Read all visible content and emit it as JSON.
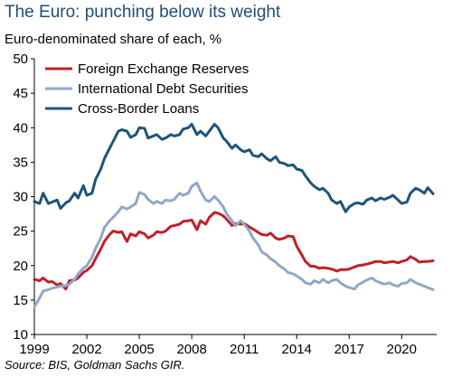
{
  "title": "The Euro: punching below its weight",
  "subtitle": "Euro-denominated share of each, %",
  "source": "Source: BIS, Goldman Sachs GIR.",
  "chart_data": {
    "type": "line",
    "title": "The Euro: punching below its weight",
    "ylabel": "Euro-denominated share of each, %",
    "xlim": [
      1999,
      2022
    ],
    "ylim": [
      10,
      50
    ],
    "yticks": [
      10,
      15,
      20,
      25,
      30,
      35,
      40,
      45,
      50
    ],
    "xticks": [
      1999,
      2002,
      2005,
      2008,
      2011,
      2014,
      2017,
      2020
    ],
    "grid": false,
    "legend": "top-left",
    "series": [
      {
        "name": "Foreign Exchange Reserves",
        "color": "#c0202a",
        "points": [
          [
            1999.0,
            18.0
          ],
          [
            1999.3,
            17.8
          ],
          [
            1999.5,
            18.2
          ],
          [
            1999.8,
            17.6
          ],
          [
            2000.0,
            17.7
          ],
          [
            2000.3,
            17.2
          ],
          [
            2000.5,
            17.4
          ],
          [
            2000.8,
            16.6
          ],
          [
            2001.0,
            17.8
          ],
          [
            2001.3,
            17.9
          ],
          [
            2001.5,
            18.2
          ],
          [
            2001.8,
            19.0
          ],
          [
            2002.0,
            19.3
          ],
          [
            2002.3,
            20.0
          ],
          [
            2002.5,
            21.0
          ],
          [
            2002.8,
            22.4
          ],
          [
            2003.0,
            23.5
          ],
          [
            2003.3,
            24.5
          ],
          [
            2003.5,
            25.0
          ],
          [
            2003.8,
            24.8
          ],
          [
            2004.0,
            24.9
          ],
          [
            2004.3,
            23.5
          ],
          [
            2004.5,
            24.6
          ],
          [
            2004.8,
            24.3
          ],
          [
            2005.0,
            24.9
          ],
          [
            2005.3,
            24.6
          ],
          [
            2005.5,
            24.0
          ],
          [
            2005.8,
            24.4
          ],
          [
            2006.0,
            24.9
          ],
          [
            2006.3,
            24.8
          ],
          [
            2006.5,
            25.0
          ],
          [
            2006.8,
            25.7
          ],
          [
            2007.0,
            25.8
          ],
          [
            2007.3,
            26.0
          ],
          [
            2007.5,
            26.4
          ],
          [
            2007.8,
            26.5
          ],
          [
            2008.0,
            26.6
          ],
          [
            2008.3,
            25.2
          ],
          [
            2008.5,
            26.5
          ],
          [
            2008.8,
            26.0
          ],
          [
            2009.0,
            27.0
          ],
          [
            2009.3,
            27.7
          ],
          [
            2009.5,
            27.6
          ],
          [
            2009.8,
            27.2
          ],
          [
            2010.0,
            26.7
          ],
          [
            2010.3,
            25.8
          ],
          [
            2010.5,
            26.1
          ],
          [
            2010.8,
            26.0
          ],
          [
            2011.0,
            26.1
          ],
          [
            2011.3,
            25.6
          ],
          [
            2011.5,
            25.3
          ],
          [
            2011.8,
            24.8
          ],
          [
            2012.0,
            24.5
          ],
          [
            2012.3,
            24.4
          ],
          [
            2012.5,
            24.7
          ],
          [
            2012.8,
            24.0
          ],
          [
            2013.0,
            23.8
          ],
          [
            2013.3,
            24.0
          ],
          [
            2013.5,
            24.3
          ],
          [
            2013.8,
            24.2
          ],
          [
            2014.0,
            22.8
          ],
          [
            2014.3,
            21.5
          ],
          [
            2014.5,
            20.6
          ],
          [
            2014.8,
            19.9
          ],
          [
            2015.0,
            19.9
          ],
          [
            2015.3,
            19.6
          ],
          [
            2015.5,
            19.7
          ],
          [
            2015.8,
            19.6
          ],
          [
            2016.0,
            19.5
          ],
          [
            2016.3,
            19.2
          ],
          [
            2016.5,
            19.4
          ],
          [
            2016.8,
            19.4
          ],
          [
            2017.0,
            19.5
          ],
          [
            2017.3,
            19.8
          ],
          [
            2017.5,
            20.0
          ],
          [
            2017.8,
            20.1
          ],
          [
            2018.0,
            20.2
          ],
          [
            2018.3,
            20.4
          ],
          [
            2018.5,
            20.6
          ],
          [
            2018.8,
            20.6
          ],
          [
            2019.0,
            20.4
          ],
          [
            2019.3,
            20.5
          ],
          [
            2019.5,
            20.6
          ],
          [
            2019.8,
            20.4
          ],
          [
            2020.0,
            20.6
          ],
          [
            2020.3,
            20.8
          ],
          [
            2020.5,
            21.3
          ],
          [
            2020.8,
            20.9
          ],
          [
            2021.0,
            20.5
          ],
          [
            2021.3,
            20.6
          ],
          [
            2021.5,
            20.6
          ],
          [
            2021.8,
            20.7
          ]
        ]
      },
      {
        "name": "International Debt Securities",
        "color": "#8fa8c8",
        "points": [
          [
            1999.0,
            14.0
          ],
          [
            1999.3,
            15.3
          ],
          [
            1999.5,
            16.3
          ],
          [
            1999.8,
            16.5
          ],
          [
            2000.0,
            16.7
          ],
          [
            2000.3,
            16.9
          ],
          [
            2000.5,
            17.0
          ],
          [
            2000.8,
            17.1
          ],
          [
            2001.0,
            17.3
          ],
          [
            2001.3,
            18.0
          ],
          [
            2001.5,
            18.8
          ],
          [
            2001.8,
            19.6
          ],
          [
            2002.0,
            20.0
          ],
          [
            2002.3,
            21.2
          ],
          [
            2002.5,
            22.5
          ],
          [
            2002.8,
            24.0
          ],
          [
            2003.0,
            25.5
          ],
          [
            2003.3,
            26.5
          ],
          [
            2003.5,
            27.0
          ],
          [
            2003.8,
            27.8
          ],
          [
            2004.0,
            28.5
          ],
          [
            2004.3,
            28.2
          ],
          [
            2004.5,
            28.5
          ],
          [
            2004.8,
            29.0
          ],
          [
            2005.0,
            30.6
          ],
          [
            2005.3,
            30.3
          ],
          [
            2005.5,
            29.6
          ],
          [
            2005.8,
            29.0
          ],
          [
            2006.0,
            29.3
          ],
          [
            2006.3,
            29.0
          ],
          [
            2006.5,
            29.5
          ],
          [
            2006.8,
            29.4
          ],
          [
            2007.0,
            29.6
          ],
          [
            2007.3,
            30.5
          ],
          [
            2007.5,
            30.2
          ],
          [
            2007.8,
            30.5
          ],
          [
            2008.0,
            31.5
          ],
          [
            2008.3,
            32.0
          ],
          [
            2008.5,
            30.8
          ],
          [
            2008.8,
            29.5
          ],
          [
            2009.0,
            29.3
          ],
          [
            2009.3,
            30.0
          ],
          [
            2009.5,
            29.5
          ],
          [
            2009.8,
            28.5
          ],
          [
            2010.0,
            27.5
          ],
          [
            2010.3,
            26.5
          ],
          [
            2010.5,
            25.8
          ],
          [
            2010.8,
            26.5
          ],
          [
            2011.0,
            26.0
          ],
          [
            2011.3,
            25.0
          ],
          [
            2011.5,
            24.0
          ],
          [
            2011.8,
            23.0
          ],
          [
            2012.0,
            22.0
          ],
          [
            2012.3,
            21.5
          ],
          [
            2012.5,
            21.0
          ],
          [
            2012.8,
            20.5
          ],
          [
            2013.0,
            20.0
          ],
          [
            2013.3,
            19.5
          ],
          [
            2013.5,
            19.0
          ],
          [
            2013.8,
            18.8
          ],
          [
            2014.0,
            18.5
          ],
          [
            2014.3,
            18.0
          ],
          [
            2014.5,
            17.5
          ],
          [
            2014.8,
            17.3
          ],
          [
            2015.0,
            17.8
          ],
          [
            2015.3,
            17.5
          ],
          [
            2015.5,
            18.0
          ],
          [
            2015.8,
            17.5
          ],
          [
            2016.0,
            17.8
          ],
          [
            2016.3,
            18.0
          ],
          [
            2016.5,
            17.5
          ],
          [
            2016.8,
            17.0
          ],
          [
            2017.0,
            16.8
          ],
          [
            2017.3,
            16.6
          ],
          [
            2017.5,
            17.2
          ],
          [
            2017.8,
            17.6
          ],
          [
            2018.0,
            17.9
          ],
          [
            2018.3,
            18.2
          ],
          [
            2018.5,
            17.8
          ],
          [
            2018.8,
            17.5
          ],
          [
            2019.0,
            17.3
          ],
          [
            2019.3,
            17.5
          ],
          [
            2019.5,
            17.2
          ],
          [
            2019.8,
            17.0
          ],
          [
            2020.0,
            17.4
          ],
          [
            2020.3,
            17.5
          ],
          [
            2020.5,
            18.0
          ],
          [
            2020.8,
            17.5
          ],
          [
            2021.0,
            17.3
          ],
          [
            2021.3,
            17.0
          ],
          [
            2021.5,
            16.8
          ],
          [
            2021.8,
            16.5
          ]
        ]
      },
      {
        "name": "Cross-Border Loans",
        "color": "#1e5477",
        "points": [
          [
            1999.0,
            29.3
          ],
          [
            1999.3,
            29.0
          ],
          [
            1999.5,
            30.5
          ],
          [
            1999.8,
            29.0
          ],
          [
            2000.0,
            29.2
          ],
          [
            2000.3,
            29.5
          ],
          [
            2000.5,
            28.3
          ],
          [
            2000.8,
            29.1
          ],
          [
            2001.0,
            29.4
          ],
          [
            2001.3,
            30.5
          ],
          [
            2001.5,
            29.8
          ],
          [
            2001.8,
            31.6
          ],
          [
            2002.0,
            30.2
          ],
          [
            2002.3,
            30.5
          ],
          [
            2002.5,
            32.5
          ],
          [
            2002.8,
            34.0
          ],
          [
            2003.0,
            35.5
          ],
          [
            2003.3,
            37.0
          ],
          [
            2003.5,
            38.0
          ],
          [
            2003.8,
            39.5
          ],
          [
            2004.0,
            39.7
          ],
          [
            2004.3,
            39.5
          ],
          [
            2004.5,
            38.6
          ],
          [
            2004.8,
            39.0
          ],
          [
            2005.0,
            40.0
          ],
          [
            2005.3,
            39.9
          ],
          [
            2005.5,
            38.5
          ],
          [
            2005.8,
            38.8
          ],
          [
            2006.0,
            39.0
          ],
          [
            2006.3,
            38.3
          ],
          [
            2006.5,
            38.5
          ],
          [
            2006.8,
            39.0
          ],
          [
            2007.0,
            38.8
          ],
          [
            2007.3,
            39.0
          ],
          [
            2007.5,
            39.8
          ],
          [
            2007.8,
            40.0
          ],
          [
            2008.0,
            40.5
          ],
          [
            2008.3,
            39.0
          ],
          [
            2008.5,
            39.5
          ],
          [
            2008.8,
            38.8
          ],
          [
            2009.0,
            39.5
          ],
          [
            2009.3,
            40.5
          ],
          [
            2009.5,
            40.0
          ],
          [
            2009.8,
            38.5
          ],
          [
            2010.0,
            38.0
          ],
          [
            2010.3,
            37.0
          ],
          [
            2010.5,
            37.5
          ],
          [
            2010.8,
            36.8
          ],
          [
            2011.0,
            36.5
          ],
          [
            2011.3,
            36.8
          ],
          [
            2011.5,
            36.0
          ],
          [
            2011.8,
            35.8
          ],
          [
            2012.0,
            36.2
          ],
          [
            2012.3,
            35.5
          ],
          [
            2012.5,
            35.2
          ],
          [
            2012.8,
            35.8
          ],
          [
            2013.0,
            35.0
          ],
          [
            2013.3,
            34.8
          ],
          [
            2013.5,
            34.5
          ],
          [
            2013.8,
            34.6
          ],
          [
            2014.0,
            34.0
          ],
          [
            2014.3,
            33.8
          ],
          [
            2014.5,
            33.0
          ],
          [
            2014.8,
            32.0
          ],
          [
            2015.0,
            31.5
          ],
          [
            2015.3,
            31.0
          ],
          [
            2015.5,
            31.2
          ],
          [
            2015.8,
            30.5
          ],
          [
            2016.0,
            29.5
          ],
          [
            2016.3,
            29.0
          ],
          [
            2016.5,
            29.3
          ],
          [
            2016.8,
            27.8
          ],
          [
            2017.0,
            28.5
          ],
          [
            2017.3,
            29.0
          ],
          [
            2017.5,
            29.1
          ],
          [
            2017.8,
            28.9
          ],
          [
            2018.0,
            29.5
          ],
          [
            2018.3,
            29.8
          ],
          [
            2018.5,
            29.4
          ],
          [
            2018.8,
            29.8
          ],
          [
            2019.0,
            29.6
          ],
          [
            2019.3,
            29.9
          ],
          [
            2019.5,
            30.2
          ],
          [
            2019.8,
            29.5
          ],
          [
            2020.0,
            29.0
          ],
          [
            2020.3,
            29.2
          ],
          [
            2020.5,
            30.5
          ],
          [
            2020.8,
            31.2
          ],
          [
            2021.0,
            31.0
          ],
          [
            2021.3,
            30.5
          ],
          [
            2021.5,
            31.3
          ],
          [
            2021.8,
            30.4
          ]
        ]
      }
    ]
  }
}
